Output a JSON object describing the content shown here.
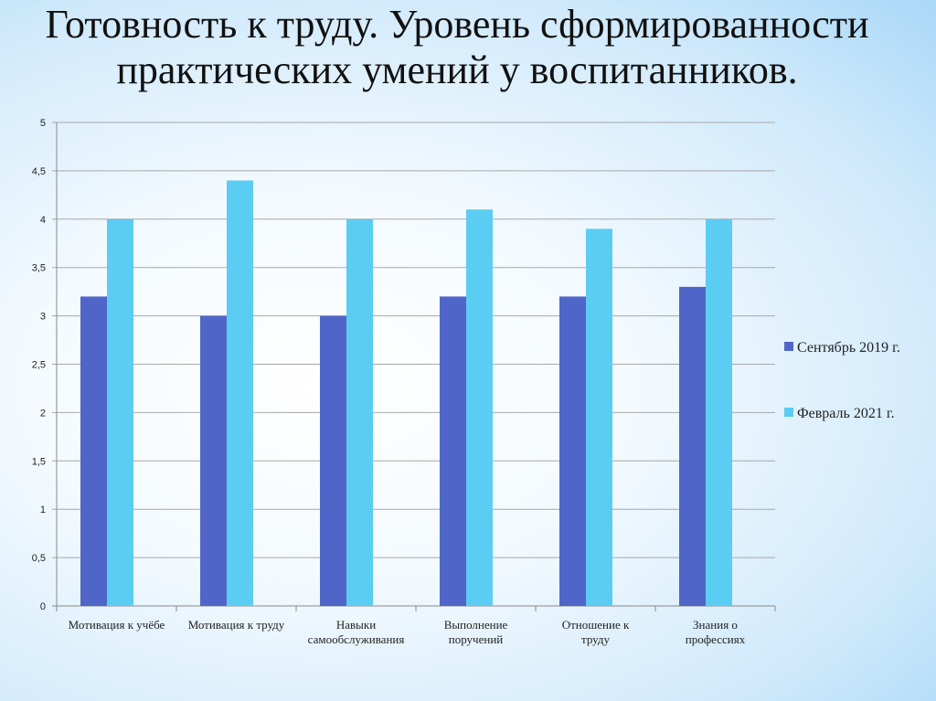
{
  "title_lines": [
    "Готовность к труду. Уровень сформированности",
    "практических умений у воспитанников."
  ],
  "chart_data": {
    "type": "bar",
    "title": "Готовность к труду. Уровень сформированности практических умений у воспитанников.",
    "categories": [
      [
        "Мотивация к учёбе"
      ],
      [
        "Мотивация к труду"
      ],
      [
        "Навыки",
        "самообслуживания"
      ],
      [
        "Выполнение",
        "поручений"
      ],
      [
        "Отношение к",
        "труду"
      ],
      [
        "Знания о",
        "профессиях"
      ]
    ],
    "series": [
      {
        "name": "Сентябрь 2019 г.",
        "color": "#4F66C8",
        "values": [
          3.2,
          3.0,
          3.0,
          3.2,
          3.2,
          3.3
        ]
      },
      {
        "name": "Февраль 2021 г.",
        "color": "#5BCCF2",
        "values": [
          4.0,
          4.4,
          4.0,
          4.1,
          3.9,
          4.0
        ]
      }
    ],
    "ylim": [
      0,
      5
    ],
    "yticks": [
      "0",
      "0,5",
      "1",
      "1,5",
      "2",
      "2,5",
      "3",
      "3,5",
      "4",
      "4,5",
      "5"
    ],
    "grid": true,
    "legend": "right"
  }
}
